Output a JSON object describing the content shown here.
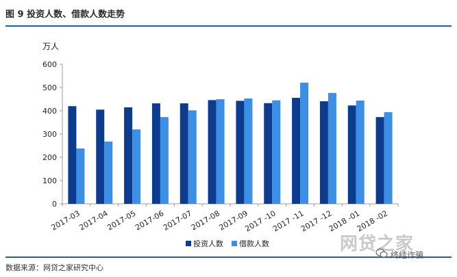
{
  "figure": {
    "title": "图 9   投资人数、借款人数走势",
    "source": "数据来源：网贷之家研究中心"
  },
  "watermark": {
    "brand": "网贷之家",
    "caption": "终结诈骗"
  },
  "colors": {
    "investors": "#0d3b8e",
    "borrowers": "#3d8fe6",
    "rule": "#1f5fa8"
  },
  "chart_data": {
    "type": "bar",
    "title": "",
    "ylabel": "万人",
    "xlabel": "",
    "ylim": [
      0,
      600
    ],
    "yticks": [
      0,
      100,
      200,
      300,
      400,
      500,
      600
    ],
    "grid": false,
    "legend_position": "bottom",
    "categories": [
      "2017-03",
      "2017-04",
      "2017-05",
      "2017-06",
      "2017-07",
      "2017-08",
      "2017-09",
      "2017 -10",
      "2017 -11",
      "2017 -12",
      "2018 -01",
      "2018 -02"
    ],
    "series": [
      {
        "name": "投资人数",
        "values": [
          420,
          405,
          415,
          432,
          432,
          446,
          443,
          433,
          456,
          441,
          423,
          373
        ]
      },
      {
        "name": "借款人数",
        "values": [
          238,
          268,
          320,
          373,
          402,
          450,
          453,
          445,
          521,
          477,
          444,
          394
        ]
      }
    ]
  }
}
